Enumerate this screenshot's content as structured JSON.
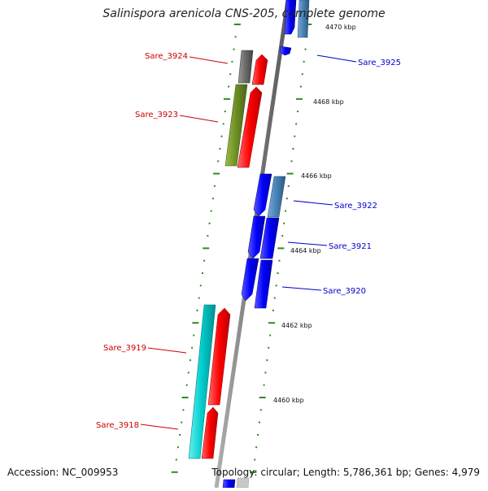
{
  "title": "Salinispora arenicola CNS-205, complete genome",
  "footer": {
    "accession": "Accession: NC_009953",
    "summary": "Topology: circular; Length: 5,786,361 bp; Genes: 4,979"
  },
  "colors": {
    "backbone": "#8c8c8c",
    "tick": "#2e8b22",
    "forward_label": "#cc0000",
    "reverse_label": "#0000cc",
    "cds_forward": "#ff0000",
    "cds_reverse": "#0000ff",
    "rna_forward": "#6b8e23",
    "rna_reverse": "#4682b4",
    "misc_forward": "#696969",
    "misc_reverse": "#00cccc"
  },
  "scale_labels": [
    "4470 kbp",
    "4468 kbp",
    "4466 kbp",
    "4464 kbp",
    "4462 kbp",
    "4460 kbp"
  ],
  "genes": [
    {
      "name": "Sare_3925",
      "strand": "reverse"
    },
    {
      "name": "Sare_3924",
      "strand": "forward"
    },
    {
      "name": "Sare_3923",
      "strand": "forward"
    },
    {
      "name": "Sare_3922",
      "strand": "reverse"
    },
    {
      "name": "Sare_3921",
      "strand": "reverse"
    },
    {
      "name": "Sare_3920",
      "strand": "reverse"
    },
    {
      "name": "Sare_3919",
      "strand": "forward"
    },
    {
      "name": "Sare_3918",
      "strand": "forward"
    }
  ]
}
